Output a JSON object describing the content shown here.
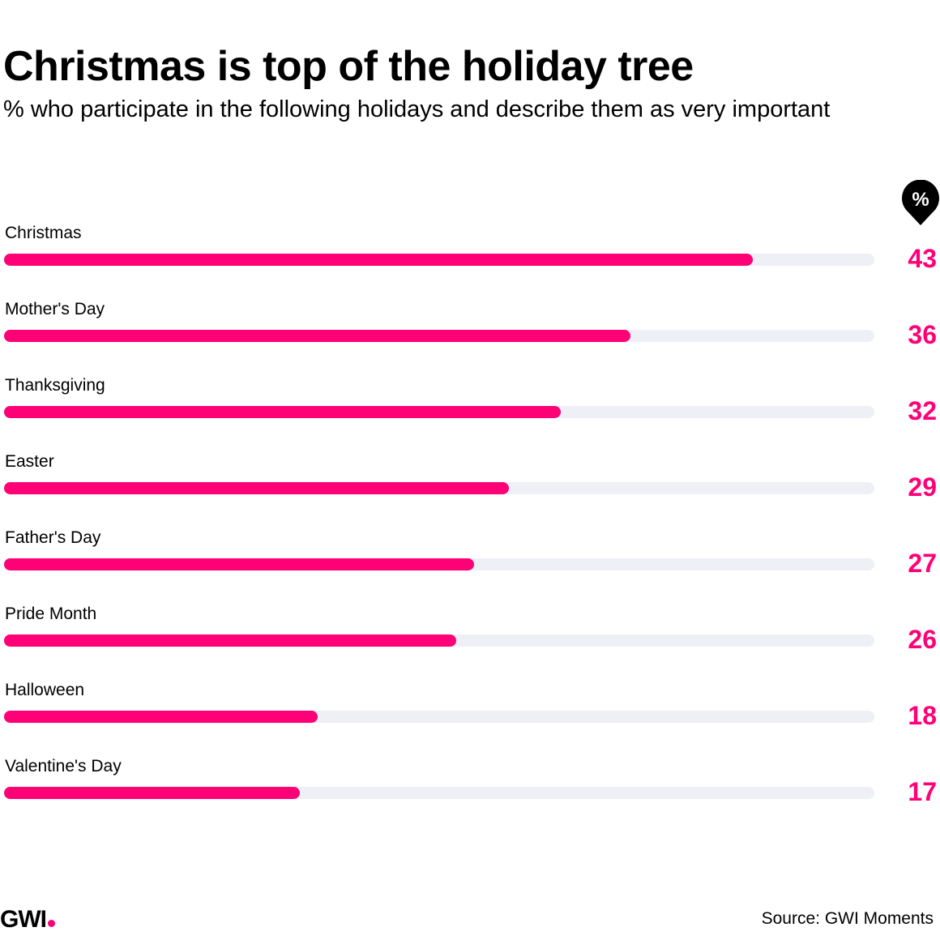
{
  "header": {
    "title": "Christmas is top of the holiday tree",
    "subtitle": "% who participate in the following holidays and describe them as very important",
    "badge_symbol": "%"
  },
  "chart_data": {
    "type": "bar",
    "orientation": "horizontal",
    "title": "Christmas is top of the holiday tree",
    "subtitle": "% who participate in the following holidays and describe them as very important",
    "unit": "%",
    "categories": [
      "Christmas",
      "Mother's Day",
      "Thanksgiving",
      "Easter",
      "Father's Day",
      "Pride Month",
      "Halloween",
      "Valentine's Day"
    ],
    "values": [
      43,
      36,
      32,
      29,
      27,
      26,
      18,
      17
    ],
    "xlim": [
      0,
      50
    ],
    "grid": false,
    "colors": {
      "bar": "#FF0077",
      "track": "#EEF0F5",
      "value_text": "#FF0077"
    }
  },
  "footer": {
    "logo": "GWI",
    "source": "Source: GWI Moments"
  }
}
